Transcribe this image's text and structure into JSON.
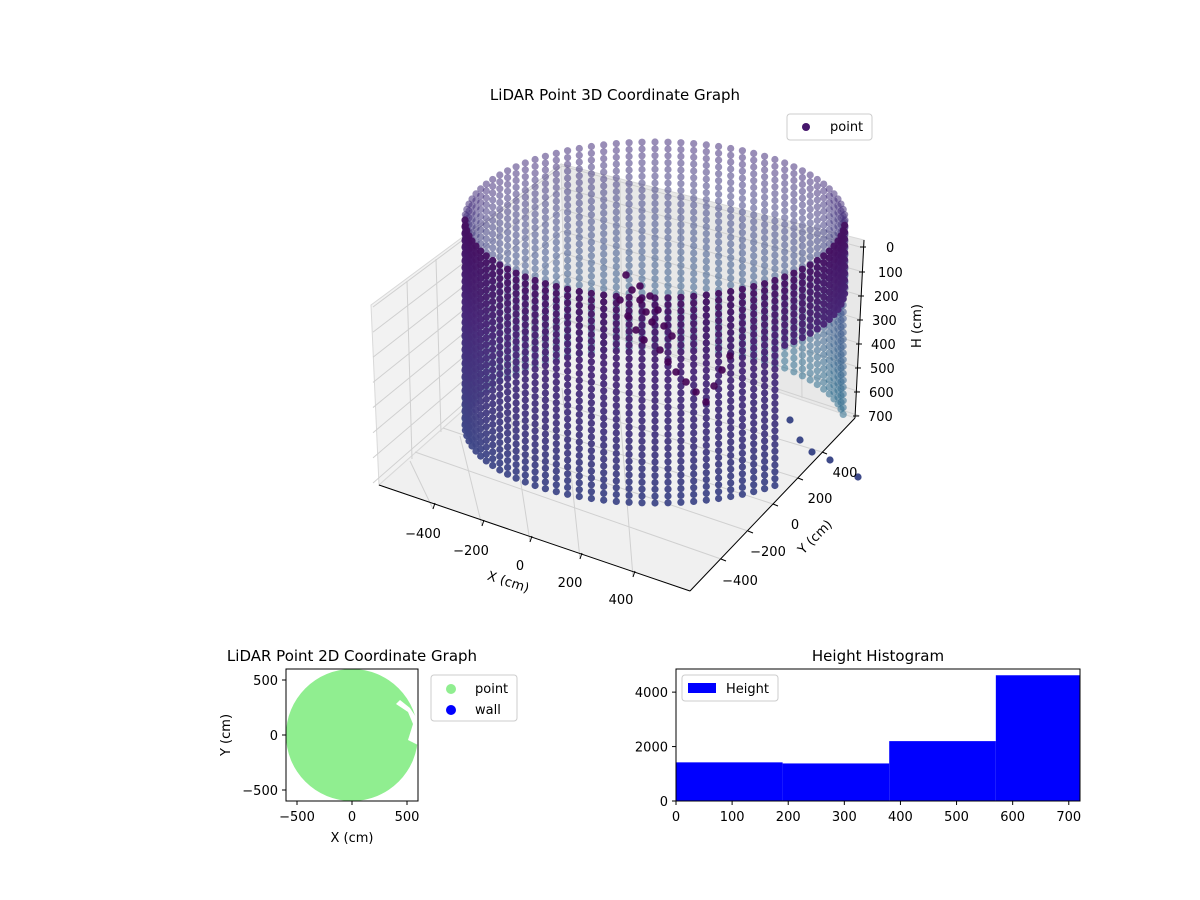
{
  "chart_data": [
    {
      "type": "scatter",
      "projection": "3d",
      "title": "LiDAR Point 3D Coordinate Graph",
      "xlabel": "X (cm)",
      "ylabel": "Y (cm)",
      "zlabel": "H (cm)",
      "xticks": [
        "−400",
        "−200",
        "0",
        "200",
        "400"
      ],
      "yticks": [
        "−400",
        "−200",
        "0",
        "200",
        "400"
      ],
      "zticks": [
        "0",
        "100",
        "200",
        "300",
        "400",
        "500",
        "600",
        "700"
      ],
      "xlim": [
        -550,
        550
      ],
      "ylim": [
        -550,
        550
      ],
      "zlim": [
        0,
        720
      ],
      "z_inverted": true,
      "colormap": "viridis",
      "grid": true,
      "legend": {
        "position": "top-right",
        "entries": [
          {
            "label": "point",
            "color": "#46176c"
          }
        ]
      },
      "series": [
        {
          "name": "point",
          "description_shape": "cylindrical wall of scan points, radius about 560 cm, heights 0 to 720 cm, open on the +X/+Y side, with a cluster of dark points inside near the top",
          "ring_radius": 560,
          "height_range": [
            0,
            720
          ]
        }
      ]
    },
    {
      "type": "scatter",
      "title": "LiDAR Point 2D Coordinate Graph",
      "xlabel": "X (cm)",
      "ylabel": "Y (cm)",
      "xticks": [
        "−500",
        "0",
        "500"
      ],
      "yticks": [
        "500",
        "0",
        "−500"
      ],
      "xlim": [
        -600,
        600
      ],
      "ylim": [
        -600,
        600
      ],
      "legend": {
        "position": "right",
        "entries": [
          {
            "label": "point",
            "color": "#90ee90"
          },
          {
            "label": "wall",
            "color": "#0000ff"
          }
        ]
      },
      "series": [
        {
          "name": "point",
          "color": "#90ee90",
          "description_shape": "filled disc radius about 600 cm with a notch near x 400 cm, y 250 to 0 cm"
        },
        {
          "name": "wall",
          "color": "#0000ff"
        }
      ]
    },
    {
      "type": "bar",
      "title": "Height Histogram",
      "xticks": [
        "0",
        "100",
        "200",
        "300",
        "400",
        "500",
        "600",
        "700"
      ],
      "yticks": [
        "0",
        "2000",
        "4000"
      ],
      "xlim": [
        0,
        720
      ],
      "ylim": [
        0,
        4850
      ],
      "legend": {
        "position": "top-left",
        "entries": [
          {
            "label": "Height",
            "color": "#0000ff"
          }
        ]
      },
      "bins": [
        {
          "x0": 0,
          "x1": 190,
          "count": 1420
        },
        {
          "x0": 190,
          "x1": 380,
          "count": 1380
        },
        {
          "x0": 380,
          "x1": 570,
          "count": 2200
        },
        {
          "x0": 570,
          "x1": 720,
          "count": 4620
        }
      ],
      "color": "#0000ff"
    }
  ]
}
